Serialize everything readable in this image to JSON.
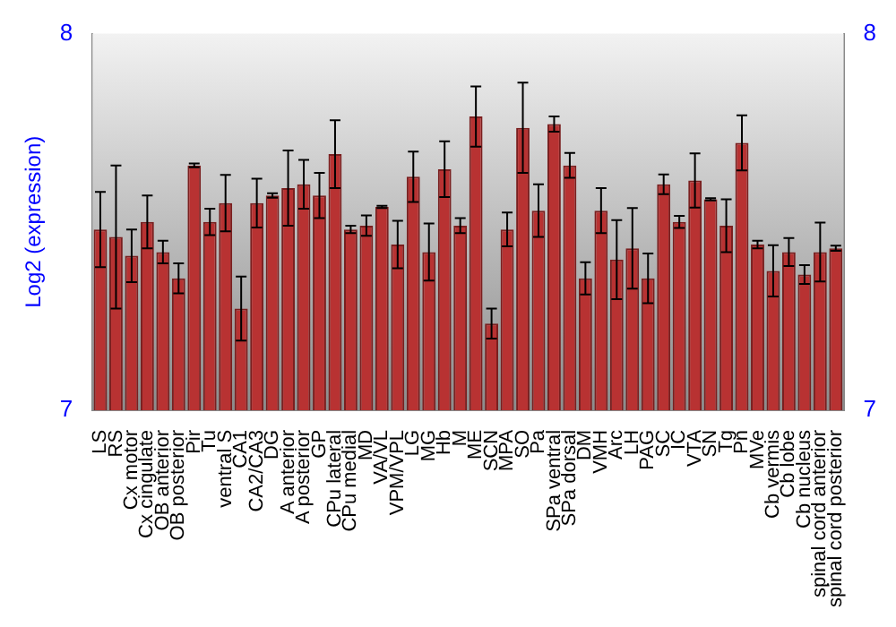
{
  "chart_data": {
    "type": "bar",
    "ylabel": "Log2 (expression)",
    "categories": [
      "LS",
      "RS",
      "Cx motor",
      "Cx cingulate",
      "OB anterior",
      "OB posterior",
      "Pir",
      "Tu",
      "ventral S",
      "CA1",
      "CA2/CA3",
      "DG",
      "A anterior",
      "A posterior",
      "GP",
      "CPu lateral",
      "CPu medial",
      "MD",
      "VA/VL",
      "VPM/VPL",
      "LG",
      "MG",
      "Hb",
      "M",
      "ME",
      "SCN",
      "MPA",
      "SO",
      "Pa",
      "SPa ventral",
      "SPa dorsal",
      "DM",
      "VMH",
      "Arc",
      "LH",
      "PAG",
      "SC",
      "IC",
      "VTA",
      "SN",
      "Tg",
      "Pn",
      "MVe",
      "Cb vermis",
      "Cb lobe",
      "Cb nucleus",
      "spinal cord anterior",
      "spinal cord posterior"
    ],
    "values": [
      7.48,
      7.46,
      7.41,
      7.5,
      7.42,
      7.35,
      7.65,
      7.5,
      7.55,
      7.27,
      7.55,
      7.57,
      7.59,
      7.6,
      7.57,
      7.68,
      7.48,
      7.49,
      7.54,
      7.44,
      7.62,
      7.42,
      7.64,
      7.49,
      7.78,
      7.23,
      7.48,
      7.75,
      7.53,
      7.76,
      7.65,
      7.35,
      7.53,
      7.4,
      7.43,
      7.35,
      7.6,
      7.5,
      7.61,
      7.56,
      7.49,
      7.71,
      7.44,
      7.37,
      7.42,
      7.36,
      7.42,
      7.43
    ],
    "errors": [
      0.1,
      0.19,
      0.07,
      0.07,
      0.03,
      0.04,
      0.005,
      0.035,
      0.075,
      0.085,
      0.065,
      0.006,
      0.1,
      0.065,
      0.06,
      0.09,
      0.01,
      0.027,
      0.003,
      0.063,
      0.067,
      0.076,
      0.074,
      0.02,
      0.08,
      0.04,
      0.045,
      0.12,
      0.07,
      0.02,
      0.033,
      0.043,
      0.06,
      0.105,
      0.107,
      0.066,
      0.026,
      0.016,
      0.072,
      0.003,
      0.07,
      0.073,
      0.01,
      0.068,
      0.037,
      0.025,
      0.078,
      0.007
    ],
    "color": "#b83232",
    "ylim": [
      7,
      8
    ],
    "yticks": [
      7,
      8
    ],
    "y2lim": [
      7,
      8
    ],
    "y2ticks": [
      7,
      8
    ]
  }
}
